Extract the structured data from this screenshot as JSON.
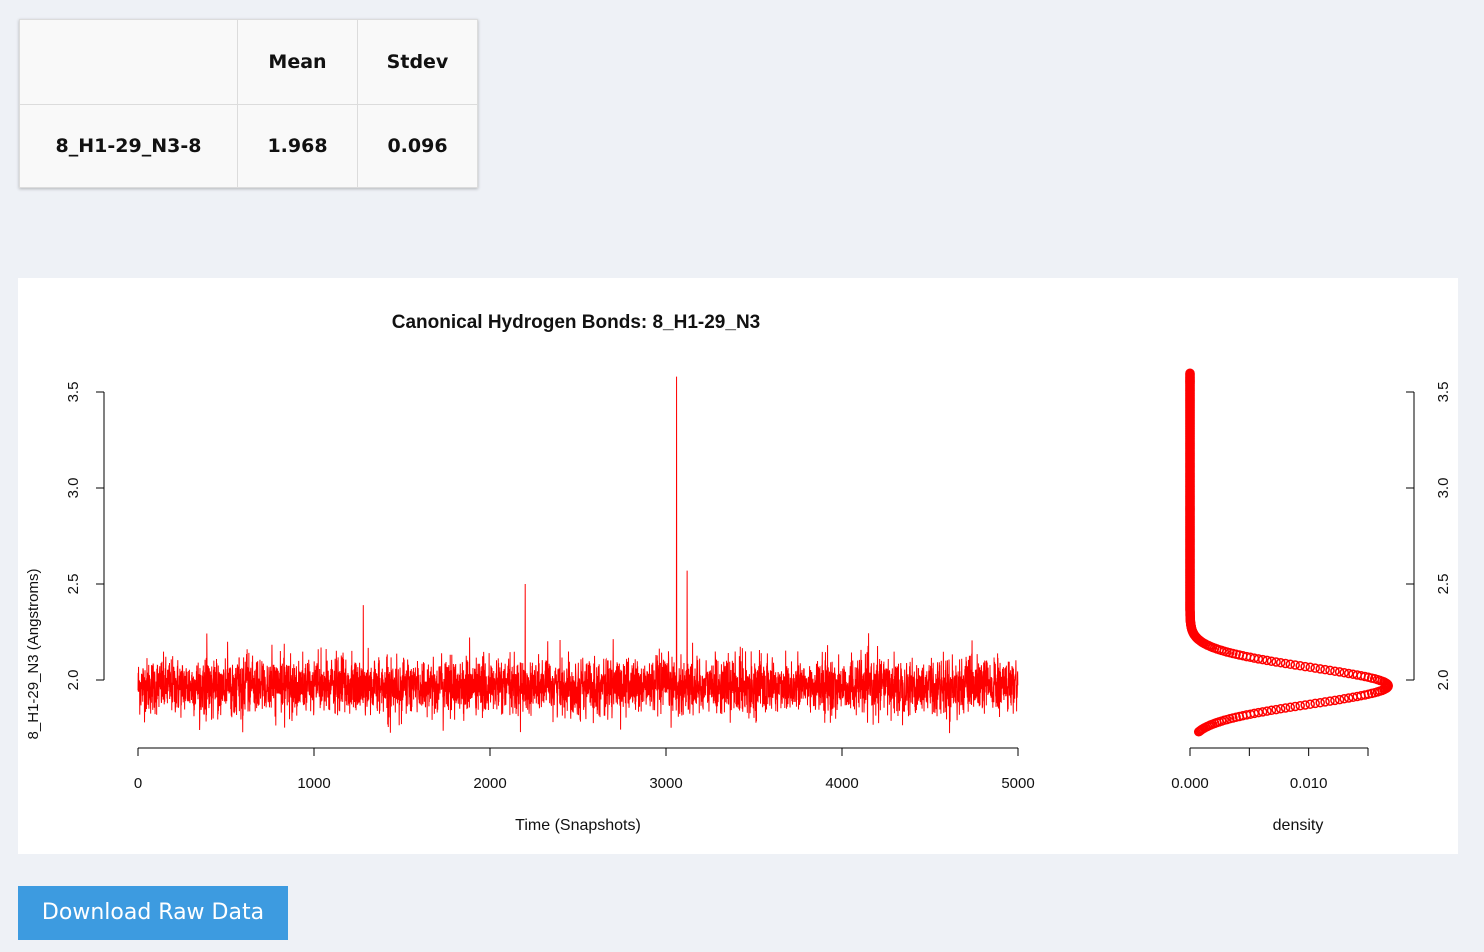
{
  "stats_table": {
    "headers": [
      "",
      "Mean",
      "Stdev"
    ],
    "rows": [
      {
        "label": "8_H1-29_N3-8",
        "mean": "1.968",
        "stdev": "0.096"
      }
    ]
  },
  "chart_data": [
    {
      "type": "line",
      "title": "Canonical Hydrogen Bonds: 8_H1-29_N3",
      "xlabel": "Time (Snapshots)",
      "ylabel": "8_H1-29_N3 (Angstroms)",
      "x_ticks": [
        "0",
        "1000",
        "2000",
        "3000",
        "4000",
        "5000"
      ],
      "y_ticks": [
        "2.0",
        "2.5",
        "3.0",
        "3.5"
      ],
      "xlim": [
        0,
        5000
      ],
      "ylim": [
        1.7,
        3.6
      ],
      "color": "#ff0000",
      "n_points": 5000,
      "mean": 1.968,
      "stdev": 0.096,
      "notable_spikes": [
        {
          "x": 1280,
          "y": 2.39
        },
        {
          "x": 2200,
          "y": 2.5
        },
        {
          "x": 3060,
          "y": 3.58
        },
        {
          "x": 3120,
          "y": 2.57
        }
      ]
    },
    {
      "type": "scatter",
      "xlabel": "density",
      "x_ticks": [
        "0.000",
        "0.010"
      ],
      "y_ticks": [
        "2.0",
        "2.5",
        "3.0",
        "3.5"
      ],
      "xlim": [
        0,
        0.017
      ],
      "ylim": [
        1.7,
        3.6
      ],
      "color": "#ff0000",
      "peak": {
        "y": 1.97,
        "density": 0.0167
      }
    }
  ],
  "download_button": {
    "label": "Download Raw Data"
  }
}
